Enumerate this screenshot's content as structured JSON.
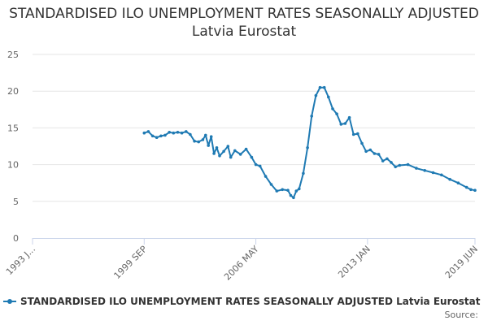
{
  "title": "STANDARDISED ILO UNEMPLOYMENT RATES SEASONALLY ADJUSTED Latvia Eurostat",
  "legend": {
    "label": "STANDARDISED ILO UNEMPLOYMENT RATES SEASONALLY ADJUSTED Latvia Eurostat"
  },
  "source_label": "Source:",
  "colors": {
    "series": "#1f7ab3",
    "grid": "#e6e6e6",
    "text": "#333333",
    "axis_text": "#666666"
  },
  "chart_data": {
    "type": "line",
    "title": "STANDARDISED ILO UNEMPLOYMENT RATES SEASONALLY ADJUSTED Latvia Eurostat",
    "xlabel": "",
    "ylabel": "",
    "ylim": [
      0,
      25
    ],
    "yticks": [
      0,
      5,
      10,
      15,
      20,
      25
    ],
    "xlim": [
      "1993-01",
      "2019-06"
    ],
    "xticks": [
      {
        "date": "1993-01",
        "label": "1993 J..."
      },
      {
        "date": "1999-09",
        "label": "1999 SEP"
      },
      {
        "date": "2006-05",
        "label": "2006 MAY"
      },
      {
        "date": "2013-01",
        "label": "2013 JAN"
      },
      {
        "date": "2019-06",
        "label": "2019 JUN"
      }
    ],
    "grid": true,
    "legend_position": "bottom",
    "marker": "circle",
    "series": [
      {
        "name": "STANDARDISED ILO UNEMPLOYMENT RATES SEASONALLY ADJUSTED Latvia Eurostat",
        "points": [
          [
            "1999-09",
            14.3
          ],
          [
            "1999-12",
            14.5
          ],
          [
            "2000-03",
            13.9
          ],
          [
            "2000-06",
            13.7
          ],
          [
            "2000-09",
            13.9
          ],
          [
            "2000-12",
            14.0
          ],
          [
            "2001-03",
            14.4
          ],
          [
            "2001-06",
            14.3
          ],
          [
            "2001-09",
            14.4
          ],
          [
            "2001-12",
            14.3
          ],
          [
            "2002-03",
            14.5
          ],
          [
            "2002-06",
            14.1
          ],
          [
            "2002-09",
            13.2
          ],
          [
            "2002-12",
            13.1
          ],
          [
            "2003-03",
            13.4
          ],
          [
            "2003-05",
            14.0
          ],
          [
            "2003-07",
            12.6
          ],
          [
            "2003-09",
            13.8
          ],
          [
            "2003-11",
            11.5
          ],
          [
            "2004-01",
            12.3
          ],
          [
            "2004-03",
            11.2
          ],
          [
            "2004-06",
            11.8
          ],
          [
            "2004-09",
            12.5
          ],
          [
            "2004-11",
            11.0
          ],
          [
            "2005-02",
            11.9
          ],
          [
            "2005-06",
            11.4
          ],
          [
            "2005-10",
            12.1
          ],
          [
            "2006-02",
            11.0
          ],
          [
            "2006-05",
            10.0
          ],
          [
            "2006-08",
            9.8
          ],
          [
            "2006-12",
            8.4
          ],
          [
            "2007-04",
            7.3
          ],
          [
            "2007-08",
            6.4
          ],
          [
            "2007-12",
            6.6
          ],
          [
            "2008-04",
            6.5
          ],
          [
            "2008-06",
            5.8
          ],
          [
            "2008-08",
            5.5
          ],
          [
            "2008-10",
            6.4
          ],
          [
            "2008-12",
            6.7
          ],
          [
            "2009-03",
            8.8
          ],
          [
            "2009-06",
            12.3
          ],
          [
            "2009-09",
            16.6
          ],
          [
            "2009-12",
            19.4
          ],
          [
            "2010-03",
            20.5
          ],
          [
            "2010-06",
            20.5
          ],
          [
            "2010-09",
            19.2
          ],
          [
            "2010-12",
            17.6
          ],
          [
            "2011-03",
            16.9
          ],
          [
            "2011-06",
            15.5
          ],
          [
            "2011-09",
            15.6
          ],
          [
            "2011-12",
            16.4
          ],
          [
            "2012-03",
            14.1
          ],
          [
            "2012-06",
            14.2
          ],
          [
            "2012-09",
            12.9
          ],
          [
            "2012-12",
            11.8
          ],
          [
            "2013-03",
            12.0
          ],
          [
            "2013-06",
            11.5
          ],
          [
            "2013-09",
            11.4
          ],
          [
            "2013-12",
            10.5
          ],
          [
            "2014-03",
            10.8
          ],
          [
            "2014-06",
            10.3
          ],
          [
            "2014-09",
            9.7
          ],
          [
            "2014-12",
            9.9
          ],
          [
            "2015-06",
            10.0
          ],
          [
            "2015-12",
            9.5
          ],
          [
            "2016-06",
            9.2
          ],
          [
            "2016-12",
            8.9
          ],
          [
            "2017-06",
            8.6
          ],
          [
            "2017-12",
            8.0
          ],
          [
            "2018-06",
            7.5
          ],
          [
            "2018-12",
            6.9
          ],
          [
            "2019-03",
            6.6
          ],
          [
            "2019-06",
            6.5
          ]
        ]
      }
    ]
  }
}
